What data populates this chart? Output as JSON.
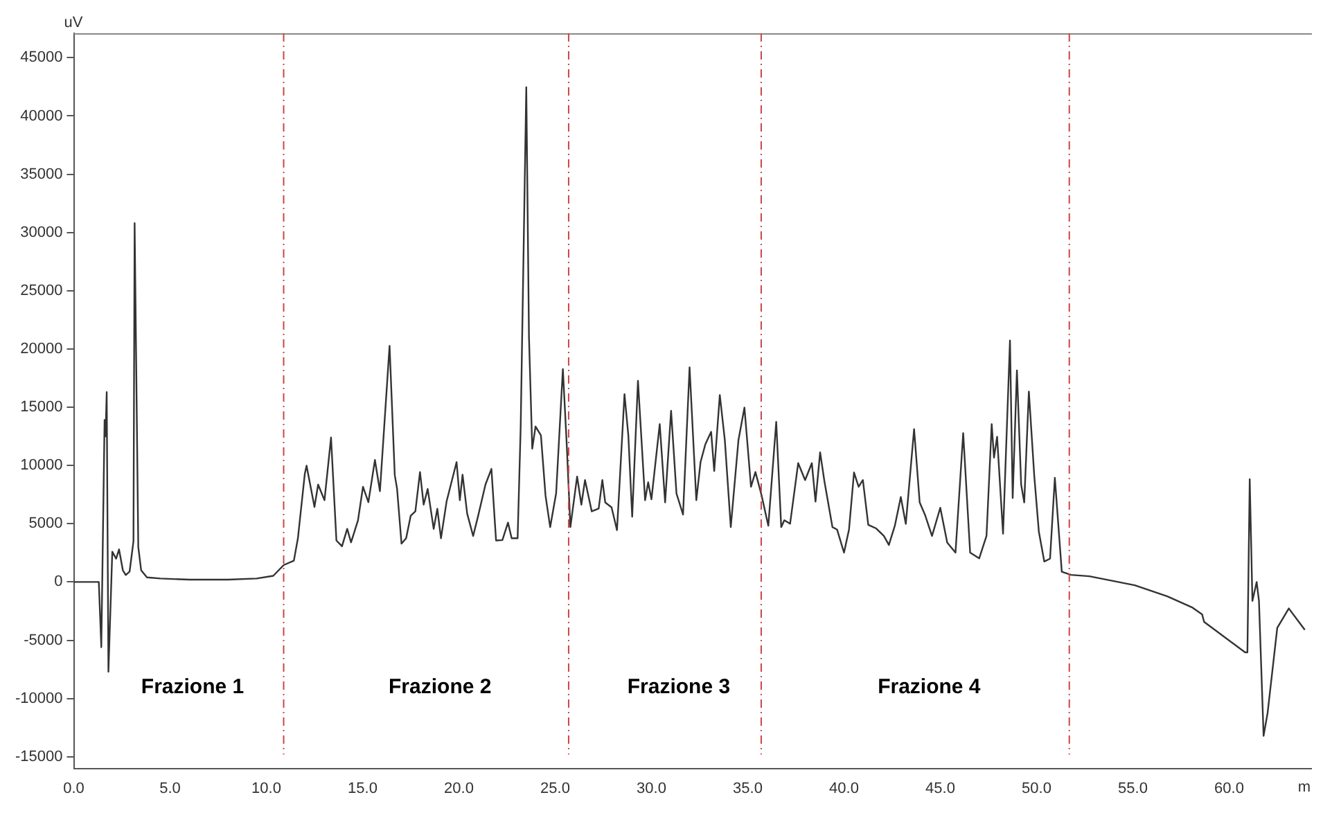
{
  "chart_data": {
    "type": "line",
    "xlabel": "m",
    "ylabel": "uV",
    "xlim": [
      0,
      64.3
    ],
    "ylim": [
      -16000,
      47100
    ],
    "xticks": [
      {
        "value": 0,
        "label": "0.0"
      },
      {
        "value": 5,
        "label": "5.0"
      },
      {
        "value": 10,
        "label": "10.0"
      },
      {
        "value": 15,
        "label": "15.0"
      },
      {
        "value": 20,
        "label": "20.0"
      },
      {
        "value": 25,
        "label": "25.0"
      },
      {
        "value": 30,
        "label": "30.0"
      },
      {
        "value": 35,
        "label": "35.0"
      },
      {
        "value": 40,
        "label": "40.0"
      },
      {
        "value": 45,
        "label": "45.0"
      },
      {
        "value": 50,
        "label": "50.0"
      },
      {
        "value": 55,
        "label": "55.0"
      },
      {
        "value": 60,
        "label": "60.0"
      }
    ],
    "yticks": [
      -15000,
      -10000,
      -5000,
      0,
      5000,
      10000,
      15000,
      20000,
      25000,
      30000,
      35000,
      40000,
      45000
    ],
    "grid": false,
    "legend": false,
    "marker": "none",
    "line_style": "solid",
    "series": [
      {
        "color": "#333333",
        "x": [
          0,
          1.3,
          1.43,
          1.6,
          1.65,
          1.71,
          1.8,
          2.0,
          2.2,
          2.35,
          2.55,
          2.7,
          2.9,
          3.1,
          3.16,
          3.35,
          3.5,
          3.8,
          4.5,
          6,
          8,
          9.5,
          10.36,
          10.9,
          11.43,
          11.64,
          12.0,
          12.09,
          12.5,
          12.69,
          13.02,
          13.36,
          13.64,
          13.93,
          14.2,
          14.4,
          14.76,
          15.02,
          15.3,
          15.64,
          15.9,
          16.4,
          16.67,
          16.79,
          17.02,
          17.26,
          17.5,
          17.74,
          17.98,
          18.17,
          18.38,
          18.69,
          18.88,
          19.07,
          19.36,
          19.88,
          20.05,
          20.19,
          20.43,
          20.74,
          21.0,
          21.38,
          21.69,
          21.93,
          22.26,
          22.55,
          22.74,
          23.05,
          23.21,
          23.5,
          23.64,
          23.81,
          23.98,
          24.26,
          24.5,
          24.74,
          25.05,
          25.4,
          25.6,
          25.79,
          26.14,
          26.36,
          26.55,
          26.9,
          27.26,
          27.45,
          27.6,
          27.93,
          28.21,
          28.33,
          28.6,
          28.8,
          29.0,
          29.3,
          29.67,
          29.83,
          30.0,
          30.43,
          30.71,
          31.02,
          31.3,
          31.64,
          31.98,
          32.33,
          32.55,
          32.8,
          33.1,
          33.26,
          33.55,
          33.81,
          34.12,
          34.52,
          34.83,
          35.17,
          35.4,
          35.71,
          36.07,
          36.48,
          36.74,
          36.9,
          37.2,
          37.62,
          37.98,
          38.33,
          38.52,
          38.76,
          38.98,
          39.4,
          39.64,
          40.0,
          40.26,
          40.52,
          40.76,
          40.98,
          41.26,
          41.67,
          42.07,
          42.33,
          42.64,
          42.95,
          43.21,
          43.64,
          43.93,
          44.21,
          44.57,
          45.0,
          45.36,
          45.79,
          46.19,
          46.55,
          47.02,
          47.4,
          47.67,
          47.79,
          47.95,
          48.26,
          48.62,
          48.76,
          48.98,
          49.2,
          49.36,
          49.6,
          49.88,
          50.12,
          50.4,
          50.7,
          50.95,
          51.31,
          51.79,
          52.74,
          55.1,
          56.79,
          58.1,
          58.6,
          58.7,
          60.83,
          60.95,
          61.07,
          61.21,
          61.43,
          61.55,
          61.79,
          62.0,
          62.5,
          63.1,
          63.93
        ],
        "values": [
          0,
          0,
          -5600,
          13900,
          12500,
          16300,
          -7700,
          2600,
          2000,
          2800,
          1000,
          600,
          900,
          3500,
          30800,
          3000,
          1000,
          400,
          300,
          200,
          200,
          300,
          530,
          1450,
          1830,
          3750,
          9300,
          9980,
          6440,
          8360,
          7020,
          12400,
          3560,
          3060,
          4560,
          3400,
          5290,
          8170,
          6850,
          10470,
          7790,
          20270,
          9170,
          8000,
          3290,
          3750,
          5700,
          6060,
          9440,
          6640,
          7980,
          4560,
          6290,
          3750,
          6900,
          10290,
          7020,
          9210,
          5870,
          3950,
          5680,
          8360,
          9710,
          3560,
          3600,
          5100,
          3750,
          3750,
          13350,
          42470,
          21040,
          11440,
          13350,
          12590,
          7400,
          4710,
          7600,
          18270,
          11820,
          4710,
          9050,
          6640,
          8750,
          6060,
          6300,
          8750,
          6830,
          6400,
          4450,
          7980,
          16120,
          12590,
          5600,
          17270,
          7020,
          8560,
          7100,
          13550,
          6830,
          14700,
          7600,
          5790,
          18420,
          7020,
          10290,
          11820,
          12890,
          9520,
          16050,
          12200,
          4710,
          12200,
          14970,
          8170,
          9440,
          7500,
          4830,
          13740,
          4710,
          5300,
          5000,
          10200,
          8750,
          10200,
          6900,
          11130,
          8670,
          4710,
          4500,
          2520,
          4500,
          9400,
          8170,
          8750,
          4910,
          4600,
          3950,
          3180,
          4830,
          7290,
          4990,
          13120,
          6830,
          5750,
          3950,
          6370,
          3380,
          2520,
          12780,
          2520,
          2030,
          3950,
          13550,
          10670,
          12470,
          4140,
          20730,
          7210,
          18160,
          8360,
          6830,
          16350,
          9130,
          4300,
          1760,
          2000,
          8940,
          880,
          610,
          490,
          -280,
          -1230,
          -2200,
          -2780,
          -3420,
          -6040,
          -6040,
          8820,
          -1620,
          0,
          -1620,
          -13210,
          -11220,
          -3930,
          -2270,
          -4110
        ]
      }
    ],
    "ref_lines": [
      {
        "axis": "x",
        "value": 10.9,
        "color": "#cc4444",
        "line_style": "dashed"
      },
      {
        "axis": "x",
        "value": 25.7,
        "color": "#cc4444",
        "line_style": "dashed"
      },
      {
        "axis": "x",
        "value": 35.7,
        "color": "#cc4444",
        "line_style": "dashed"
      },
      {
        "axis": "x",
        "value": 51.7,
        "color": "#cc4444",
        "line_style": "dashed"
      }
    ],
    "annotations": [
      "Frazione 1",
      "Frazione 2",
      "Frazione 3",
      "Frazione 4"
    ]
  }
}
